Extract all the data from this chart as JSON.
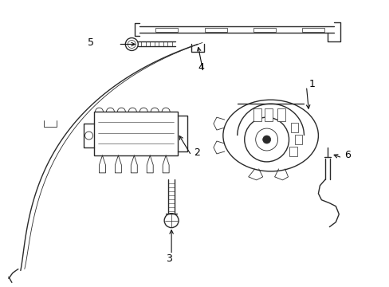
{
  "background_color": "#ffffff",
  "line_color": "#2a2a2a",
  "label_color": "#000000",
  "figsize": [
    4.89,
    3.6
  ],
  "dpi": 100,
  "arrow_color": "#111111"
}
